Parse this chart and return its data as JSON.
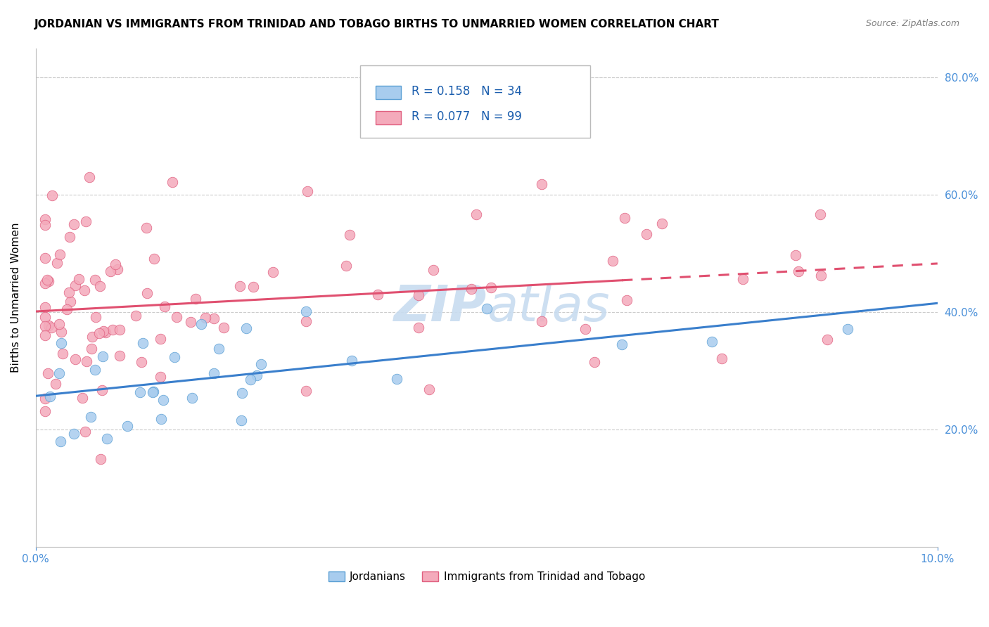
{
  "title": "JORDANIAN VS IMMIGRANTS FROM TRINIDAD AND TOBAGO BIRTHS TO UNMARRIED WOMEN CORRELATION CHART",
  "source": "Source: ZipAtlas.com",
  "ylabel": "Births to Unmarried Women",
  "x_min": 0.0,
  "x_max": 0.1,
  "y_min": 0.0,
  "y_max": 0.85,
  "legend_labels": [
    "Jordanians",
    "Immigrants from Trinidad and Tobago"
  ],
  "blue_fill": "#A8CCEE",
  "pink_fill": "#F4AABB",
  "blue_edge": "#5A9FD4",
  "pink_edge": "#E06080",
  "blue_line_color": "#3A7FCC",
  "pink_line_color": "#E05070",
  "R_blue": 0.158,
  "N_blue": 34,
  "R_pink": 0.077,
  "N_pink": 99,
  "legend_text_color": "#1A5DAD",
  "tick_color": "#4A90D9",
  "watermark_color": "#C8DCF0",
  "background_color": "#FFFFFF",
  "grid_color": "#CCCCCC",
  "title_fontsize": 11,
  "axis_label_fontsize": 11,
  "tick_fontsize": 11
}
